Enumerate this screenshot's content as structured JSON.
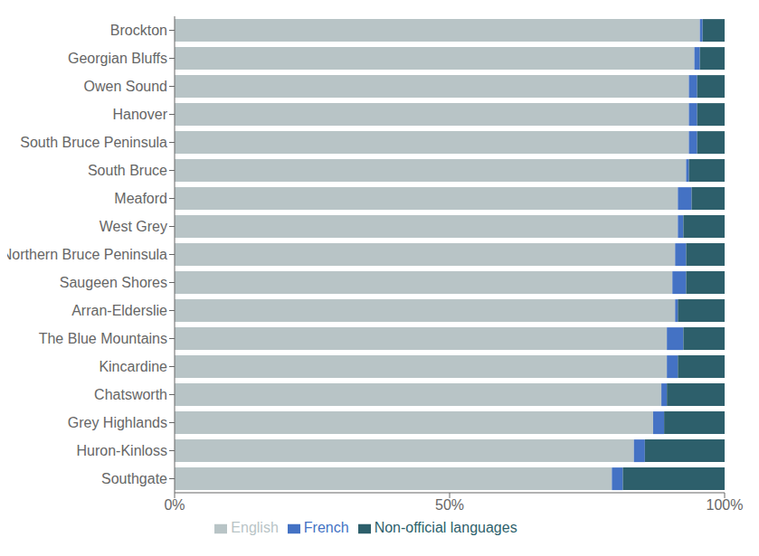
{
  "chart_data": {
    "type": "bar",
    "orientation": "horizontal",
    "stacked": true,
    "categories": [
      "Brockton",
      "Georgian Bluffs",
      "Owen Sound",
      "Hanover",
      "South Bruce Peninsula",
      "South Bruce",
      "Meaford",
      "West Grey",
      "Northern Bruce Peninsula",
      "Saugeen Shores",
      "Arran-Elderslie",
      "The Blue Mountains",
      "Kincardine",
      "Chatsworth",
      "Grey Highlands",
      "Huron-Kinloss",
      "Southgate"
    ],
    "series": [
      {
        "name": "English",
        "color": "#b8c4c6",
        "values": [
          95.5,
          94.5,
          93.5,
          93.5,
          93.5,
          93.0,
          91.5,
          91.5,
          91.0,
          90.5,
          91.0,
          89.5,
          89.5,
          88.5,
          87.0,
          83.5,
          79.5
        ]
      },
      {
        "name": "French",
        "color": "#4472c4",
        "values": [
          0.5,
          1.0,
          1.5,
          1.5,
          1.5,
          0.5,
          2.5,
          1.0,
          2.0,
          2.5,
          0.5,
          3.0,
          2.0,
          1.0,
          2.0,
          2.0,
          2.0
        ]
      },
      {
        "name": "Non-official languages",
        "color": "#2d5f6b",
        "values": [
          4.0,
          4.5,
          5.0,
          5.0,
          5.0,
          6.5,
          6.0,
          7.5,
          7.0,
          7.0,
          8.5,
          7.5,
          8.5,
          10.5,
          11.0,
          14.5,
          18.5
        ]
      }
    ],
    "xlim": [
      0,
      100
    ],
    "xticks": [
      {
        "value": 0,
        "label": "0%"
      },
      {
        "value": 50,
        "label": "50%"
      },
      {
        "value": 100,
        "label": "100%"
      }
    ],
    "grid": false,
    "legend": "bottom"
  }
}
